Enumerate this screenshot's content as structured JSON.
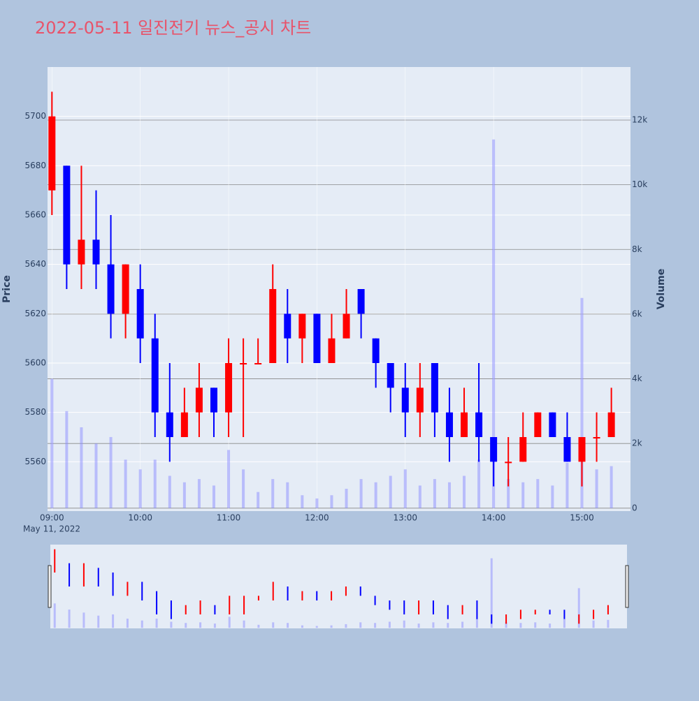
{
  "chart_data": {
    "type": "candlestick",
    "title": "2022-05-11 일진전기 뉴스_공시 차트",
    "x_label_date": "May 11, 2022",
    "y_label": "Price",
    "y2_label": "Volume",
    "increasing_color": "#ff0000",
    "decreasing_color": "#0000ff",
    "volume_color": "#8c8cff",
    "x": [
      "09:00",
      "09:10",
      "09:20",
      "09:30",
      "09:40",
      "09:50",
      "10:00",
      "10:10",
      "10:20",
      "10:30",
      "10:40",
      "10:50",
      "11:00",
      "11:10",
      "11:20",
      "11:30",
      "11:40",
      "11:50",
      "12:00",
      "12:10",
      "12:20",
      "12:30",
      "12:40",
      "12:50",
      "13:00",
      "13:10",
      "13:20",
      "13:30",
      "13:40",
      "13:50",
      "14:00",
      "14:10",
      "14:20",
      "14:30",
      "14:40",
      "14:50",
      "15:00",
      "15:10",
      "15:20"
    ],
    "open": [
      5670,
      5680,
      5640,
      5650,
      5640,
      5620,
      5630,
      5610,
      5580,
      5570,
      5580,
      5590,
      5580,
      5600,
      5600,
      5600,
      5620,
      5610,
      5620,
      5600,
      5610,
      5630,
      5610,
      5600,
      5590,
      5580,
      5600,
      5580,
      5570,
      5580,
      5570,
      5560,
      5560,
      5570,
      5580,
      5570,
      5560,
      5570,
      5570
    ],
    "high": [
      5710,
      5680,
      5680,
      5670,
      5660,
      5640,
      5640,
      5620,
      5600,
      5590,
      5600,
      5590,
      5610,
      5610,
      5610,
      5640,
      5630,
      5620,
      5620,
      5620,
      5630,
      5630,
      5610,
      5600,
      5600,
      5600,
      5600,
      5590,
      5590,
      5600,
      5570,
      5570,
      5580,
      5580,
      5580,
      5580,
      5570,
      5580,
      5590
    ],
    "low": [
      5660,
      5630,
      5630,
      5630,
      5610,
      5610,
      5600,
      5570,
      5560,
      5570,
      5570,
      5570,
      5570,
      5570,
      5600,
      5600,
      5600,
      5600,
      5600,
      5600,
      5610,
      5610,
      5590,
      5580,
      5570,
      5570,
      5570,
      5560,
      5570,
      5560,
      5550,
      5550,
      5560,
      5570,
      5570,
      5560,
      5550,
      5560,
      5570
    ],
    "close": [
      5700,
      5640,
      5650,
      5640,
      5620,
      5640,
      5610,
      5580,
      5570,
      5580,
      5590,
      5580,
      5600,
      5600,
      5600,
      5630,
      5610,
      5620,
      5600,
      5610,
      5620,
      5620,
      5600,
      5590,
      5580,
      5590,
      5580,
      5570,
      5580,
      5570,
      5560,
      5560,
      5570,
      5580,
      5570,
      5560,
      5570,
      5570,
      5580
    ],
    "volume": [
      4000,
      3000,
      2500,
      2000,
      2200,
      1500,
      1200,
      1500,
      1000,
      800,
      900,
      700,
      1800,
      1200,
      500,
      900,
      800,
      400,
      300,
      400,
      600,
      900,
      800,
      1000,
      1200,
      700,
      900,
      800,
      1000,
      1500,
      11400,
      900,
      800,
      900,
      700,
      1400,
      6500,
      1200,
      1300
    ],
    "xlim": [
      "08:57",
      "15:33"
    ],
    "xticks": [
      "09:00",
      "10:00",
      "11:00",
      "12:00",
      "13:00",
      "14:00",
      "15:00"
    ],
    "ylim": [
      5540,
      5720
    ],
    "yticks": [
      5560,
      5580,
      5600,
      5620,
      5640,
      5660,
      5680,
      5700
    ],
    "y2lim": [
      -90,
      13640
    ],
    "y2ticks": [
      0,
      {
        "value": 2000,
        "label": "2k"
      },
      {
        "value": 4000,
        "label": "4k"
      },
      {
        "value": 6000,
        "label": "6k"
      },
      {
        "value": 8000,
        "label": "8k"
      },
      {
        "value": 10000,
        "label": "10k"
      },
      {
        "value": 12000,
        "label": "12k"
      }
    ],
    "grid": true,
    "rangeslider": true
  }
}
